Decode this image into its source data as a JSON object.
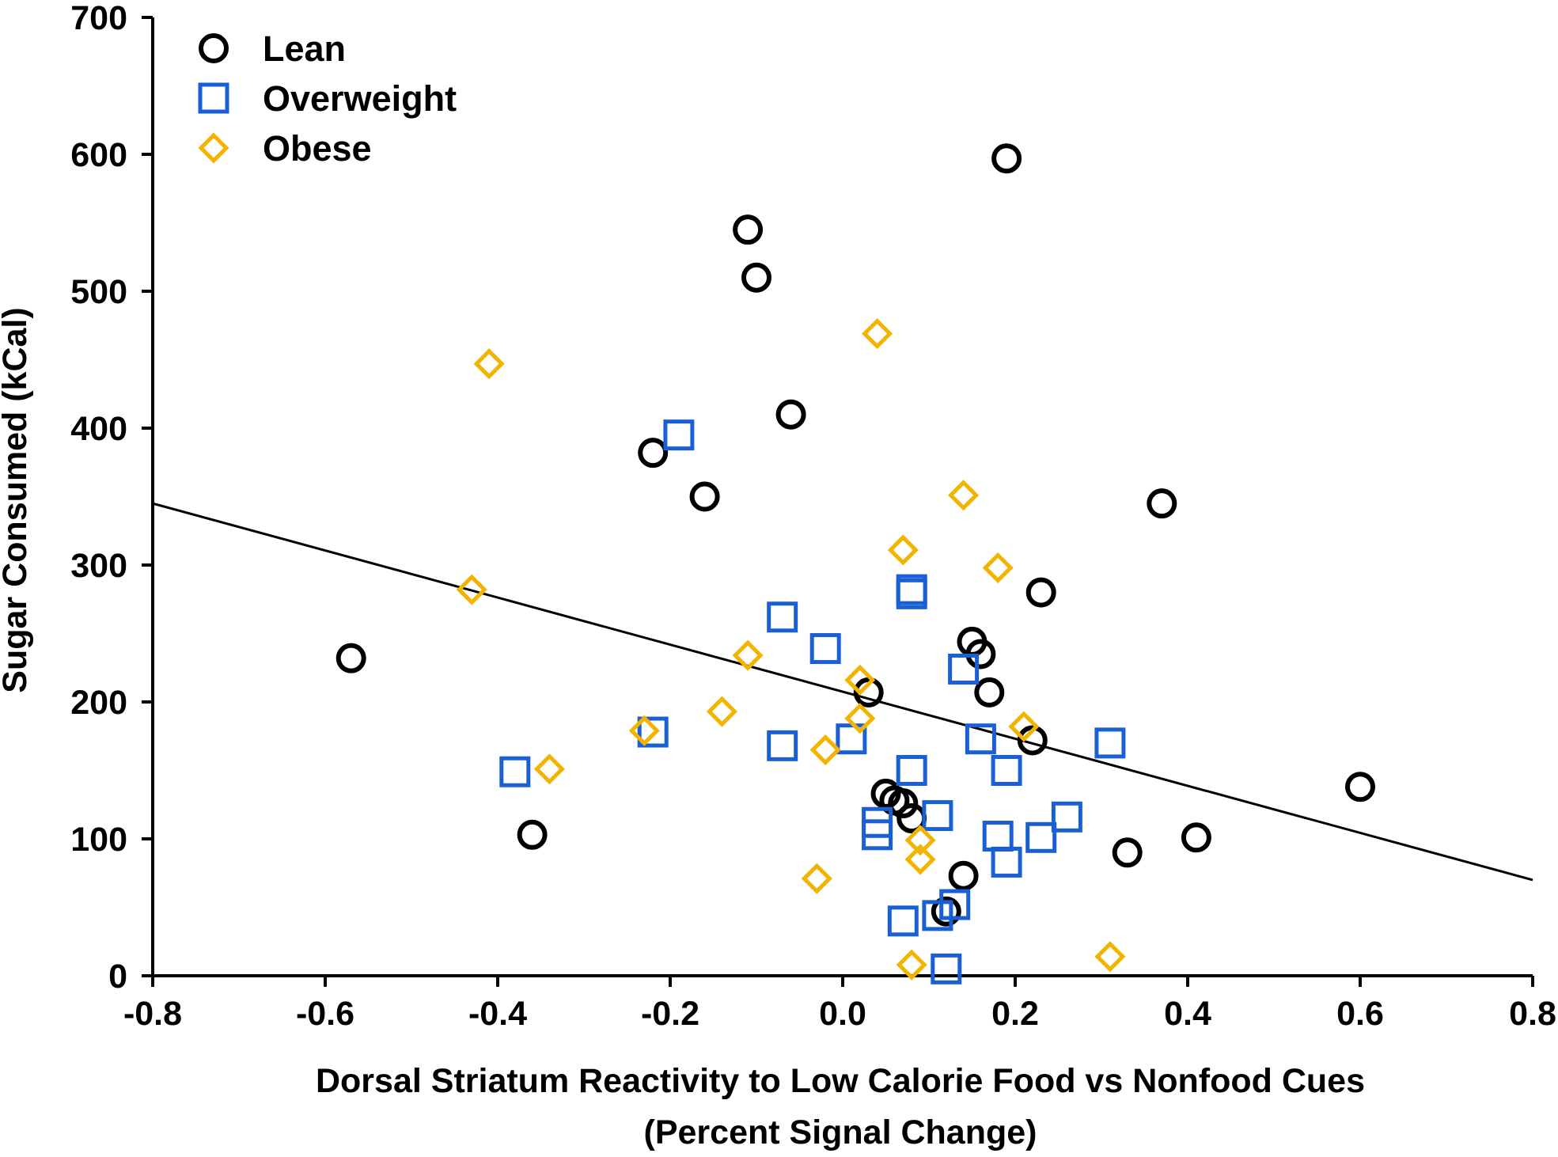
{
  "chart_data": {
    "type": "scatter",
    "xlabel_line1": "Dorsal Striatum Reactivity to Low Calorie Food vs Nonfood Cues",
    "xlabel_line2": "(Percent Signal Change)",
    "ylabel": "Sugar Consumed (kCal)",
    "xlim": [
      -0.8,
      0.8
    ],
    "ylim": [
      0,
      700
    ],
    "xticks": [
      -0.8,
      -0.6,
      -0.4,
      -0.2,
      0.0,
      0.2,
      0.4,
      0.6,
      0.8
    ],
    "xtick_labels": [
      "-0.8",
      "-0.6",
      "-0.4",
      "-0.2",
      "0.0",
      "0.2",
      "0.4",
      "0.6",
      "0.8"
    ],
    "yticks": [
      0,
      100,
      200,
      300,
      400,
      500,
      600,
      700
    ],
    "ytick_labels": [
      "0",
      "100",
      "200",
      "300",
      "400",
      "500",
      "600",
      "700"
    ],
    "legend_position": "top-left",
    "grid": false,
    "series": [
      {
        "name": "Lean",
        "marker": "circle",
        "color": "#000000",
        "points": [
          [
            0.19,
            597
          ],
          [
            -0.11,
            545
          ],
          [
            -0.1,
            510
          ],
          [
            -0.06,
            410
          ],
          [
            -0.22,
            382
          ],
          [
            -0.16,
            350
          ],
          [
            0.37,
            345
          ],
          [
            0.23,
            280
          ],
          [
            -0.57,
            232
          ],
          [
            0.15,
            244
          ],
          [
            0.16,
            235
          ],
          [
            0.17,
            207
          ],
          [
            0.03,
            207
          ],
          [
            0.22,
            172
          ],
          [
            0.05,
            133
          ],
          [
            0.06,
            128
          ],
          [
            0.07,
            126
          ],
          [
            0.08,
            115
          ],
          [
            0.6,
            138
          ],
          [
            0.41,
            101
          ],
          [
            -0.36,
            103
          ],
          [
            0.33,
            90
          ],
          [
            0.14,
            73
          ],
          [
            0.12,
            47
          ]
        ]
      },
      {
        "name": "Overweight",
        "marker": "square",
        "color": "#1a5fd4",
        "points": [
          [
            -0.19,
            395
          ],
          [
            0.08,
            282
          ],
          [
            0.08,
            279
          ],
          [
            -0.07,
            262
          ],
          [
            -0.02,
            239
          ],
          [
            0.14,
            224
          ],
          [
            -0.22,
            178
          ],
          [
            0.16,
            173
          ],
          [
            0.01,
            173
          ],
          [
            -0.07,
            168
          ],
          [
            0.31,
            170
          ],
          [
            0.08,
            150
          ],
          [
            0.19,
            150
          ],
          [
            -0.38,
            149
          ],
          [
            0.11,
            117
          ],
          [
            0.26,
            116
          ],
          [
            0.04,
            112
          ],
          [
            0.04,
            103
          ],
          [
            0.18,
            102
          ],
          [
            0.23,
            101
          ],
          [
            0.19,
            83
          ],
          [
            0.13,
            52
          ],
          [
            0.11,
            44
          ],
          [
            0.07,
            40
          ],
          [
            0.12,
            5
          ]
        ]
      },
      {
        "name": "Obese",
        "marker": "diamond",
        "color": "#f2b400",
        "points": [
          [
            0.04,
            469
          ],
          [
            -0.41,
            447
          ],
          [
            0.14,
            351
          ],
          [
            0.07,
            311
          ],
          [
            0.18,
            298
          ],
          [
            -0.43,
            282
          ],
          [
            -0.11,
            234
          ],
          [
            0.02,
            216
          ],
          [
            0.02,
            188
          ],
          [
            -0.14,
            193
          ],
          [
            0.21,
            182
          ],
          [
            -0.23,
            179
          ],
          [
            -0.02,
            165
          ],
          [
            -0.34,
            151
          ],
          [
            0.09,
            99
          ],
          [
            0.09,
            85
          ],
          [
            -0.03,
            71
          ],
          [
            0.31,
            14
          ],
          [
            0.08,
            8
          ]
        ]
      }
    ],
    "fit_line": {
      "type": "linear",
      "points": [
        [
          -0.8,
          345
        ],
        [
          0.8,
          70
        ]
      ]
    }
  }
}
